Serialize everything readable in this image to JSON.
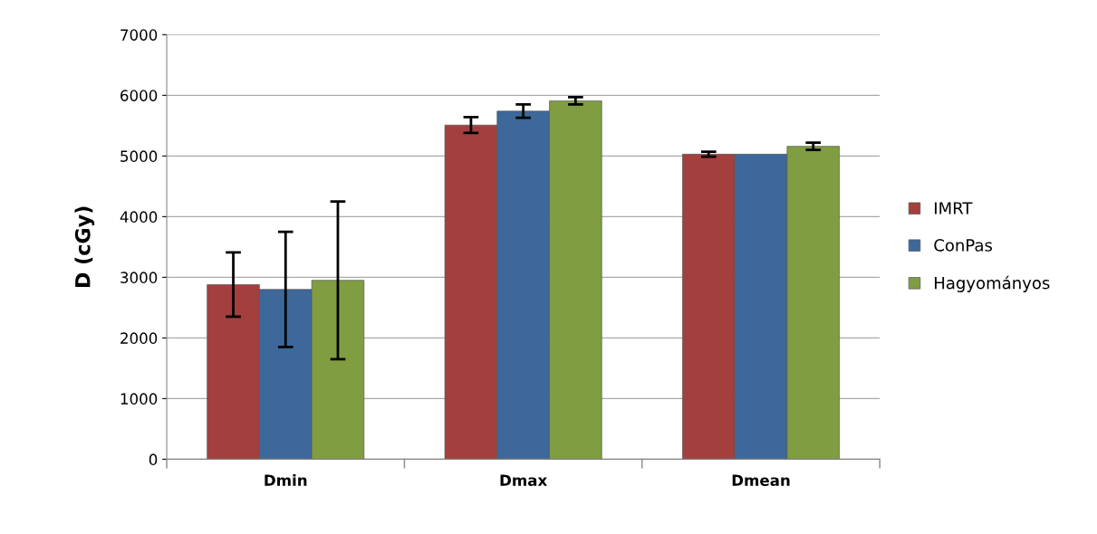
{
  "chart_data": {
    "type": "bar",
    "ylabel": "D (cGy)",
    "categories": [
      "Dmin",
      "Dmax",
      "Dmean"
    ],
    "series": [
      {
        "name": "IMRT",
        "color": "#a33f3d",
        "values": [
          2880,
          5510,
          5030
        ],
        "errors": [
          530,
          130,
          40
        ]
      },
      {
        "name": "ConPas",
        "color": "#3e6899",
        "values": [
          2800,
          5740,
          5030
        ],
        "errors": [
          950,
          110,
          null
        ]
      },
      {
        "name": "Hagyományos",
        "color": "#809d42",
        "values": [
          2950,
          5910,
          5160
        ],
        "errors": [
          1300,
          60,
          60
        ]
      }
    ],
    "ylim": [
      0,
      7000
    ],
    "yticks": [
      0,
      1000,
      2000,
      3000,
      4000,
      5000,
      6000,
      7000
    ],
    "grid": "y",
    "legend": "right"
  }
}
